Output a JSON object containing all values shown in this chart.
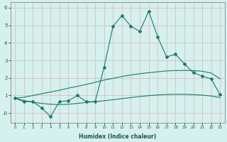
{
  "x": [
    0,
    1,
    2,
    3,
    4,
    5,
    6,
    7,
    8,
    9,
    10,
    11,
    12,
    13,
    14,
    15,
    16,
    17,
    18,
    19,
    20,
    21,
    22,
    23
  ],
  "main_line": [
    0.85,
    0.65,
    0.65,
    0.3,
    -0.2,
    0.65,
    0.7,
    1.0,
    0.65,
    0.65,
    2.6,
    4.95,
    5.55,
    4.95,
    4.65,
    5.8,
    4.35,
    3.2,
    3.35,
    2.8,
    2.3,
    2.1,
    1.95,
    1.05
  ],
  "upper_line": [
    0.85,
    0.9,
    1.0,
    1.1,
    1.2,
    1.3,
    1.42,
    1.52,
    1.63,
    1.75,
    1.88,
    1.98,
    2.08,
    2.17,
    2.24,
    2.3,
    2.35,
    2.4,
    2.42,
    2.43,
    2.42,
    2.38,
    2.28,
    1.95
  ],
  "lower_line": [
    0.85,
    0.72,
    0.62,
    0.55,
    0.5,
    0.48,
    0.5,
    0.55,
    0.6,
    0.65,
    0.7,
    0.76,
    0.82,
    0.88,
    0.94,
    0.99,
    1.03,
    1.06,
    1.07,
    1.07,
    1.05,
    1.02,
    0.97,
    0.88
  ],
  "line_color": "#1a7a6e",
  "bg_color": "#d6f0ee",
  "outer_bg": "#d6f0ee",
  "grid_color": "#d4b8b8",
  "spine_color": "#888888",
  "xlabel": "Humidex (Indice chaleur)",
  "xlim": [
    -0.5,
    23.5
  ],
  "ylim": [
    -0.55,
    6.3
  ],
  "yticks": [
    0,
    1,
    2,
    3,
    4,
    5,
    6
  ],
  "ytick_labels": [
    "-0",
    "1",
    "2",
    "3",
    "4",
    "5",
    "6"
  ],
  "xtick_labels": [
    "0",
    "1",
    "2",
    "3",
    "4",
    "5",
    "6",
    "7",
    "8",
    "9",
    "10",
    "11",
    "12",
    "13",
    "14",
    "15",
    "16",
    "17",
    "18",
    "19",
    "20",
    "21",
    "22",
    "23"
  ]
}
